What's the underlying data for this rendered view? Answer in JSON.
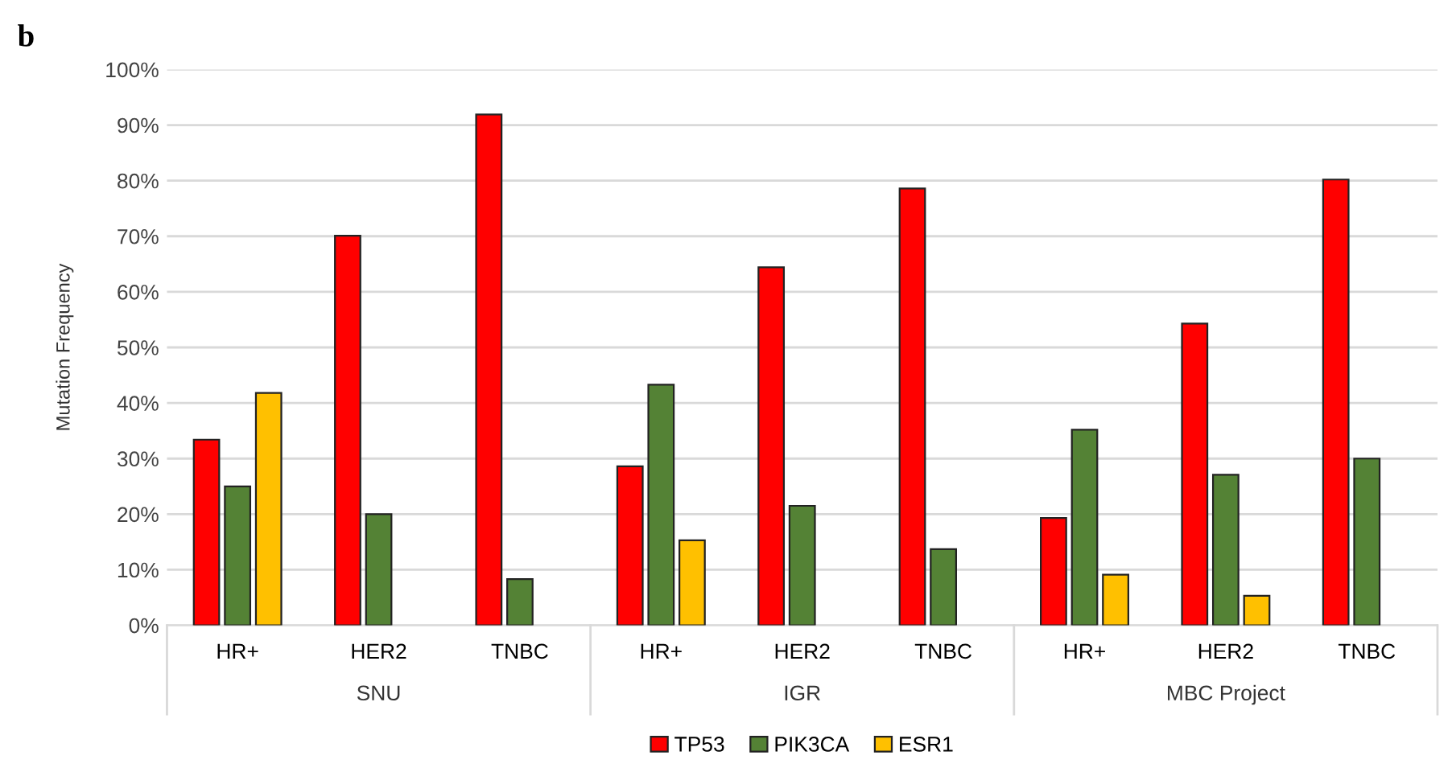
{
  "chart_data": {
    "type": "bar",
    "ylabel": "Mutation Frequency",
    "categories": [
      "HR+",
      "HER2",
      "TNBC",
      "HR+",
      "HER2",
      "TNBC",
      "HR+",
      "HER2",
      "TNBC"
    ],
    "series": [
      {
        "name": "TP53",
        "color": "#ff0000",
        "values": [
          33.4,
          70.1,
          91.9,
          28.6,
          64.4,
          78.6,
          19.3,
          54.3,
          80.2
        ]
      },
      {
        "name": "PIK3CA",
        "color": "#548235",
        "values": [
          25.0,
          20.0,
          8.3,
          43.3,
          21.5,
          13.7,
          35.2,
          27.1,
          30.0
        ]
      },
      {
        "name": "ESR1",
        "color": "#ffc000",
        "values": [
          41.8,
          null,
          null,
          15.3,
          null,
          null,
          9.1,
          5.3,
          null
        ]
      }
    ],
    "ylim": [
      0,
      100
    ],
    "yticks": [
      {
        "value": 0,
        "label": "0%"
      },
      {
        "value": 10,
        "label": "10%"
      },
      {
        "value": 20,
        "label": "20%"
      },
      {
        "value": 30,
        "label": "30%"
      },
      {
        "value": 40,
        "label": "40%"
      },
      {
        "value": 50,
        "label": "50%"
      },
      {
        "value": 60,
        "label": "60%"
      },
      {
        "value": 70,
        "label": "70%"
      },
      {
        "value": 80,
        "label": "80%"
      },
      {
        "value": 90,
        "label": "90%"
      },
      {
        "value": 100,
        "label": "100%"
      }
    ],
    "grid": "y",
    "legend": "bottom",
    "annotations": [
      "b",
      "SNU",
      "IGR",
      "MBC Project"
    ]
  }
}
